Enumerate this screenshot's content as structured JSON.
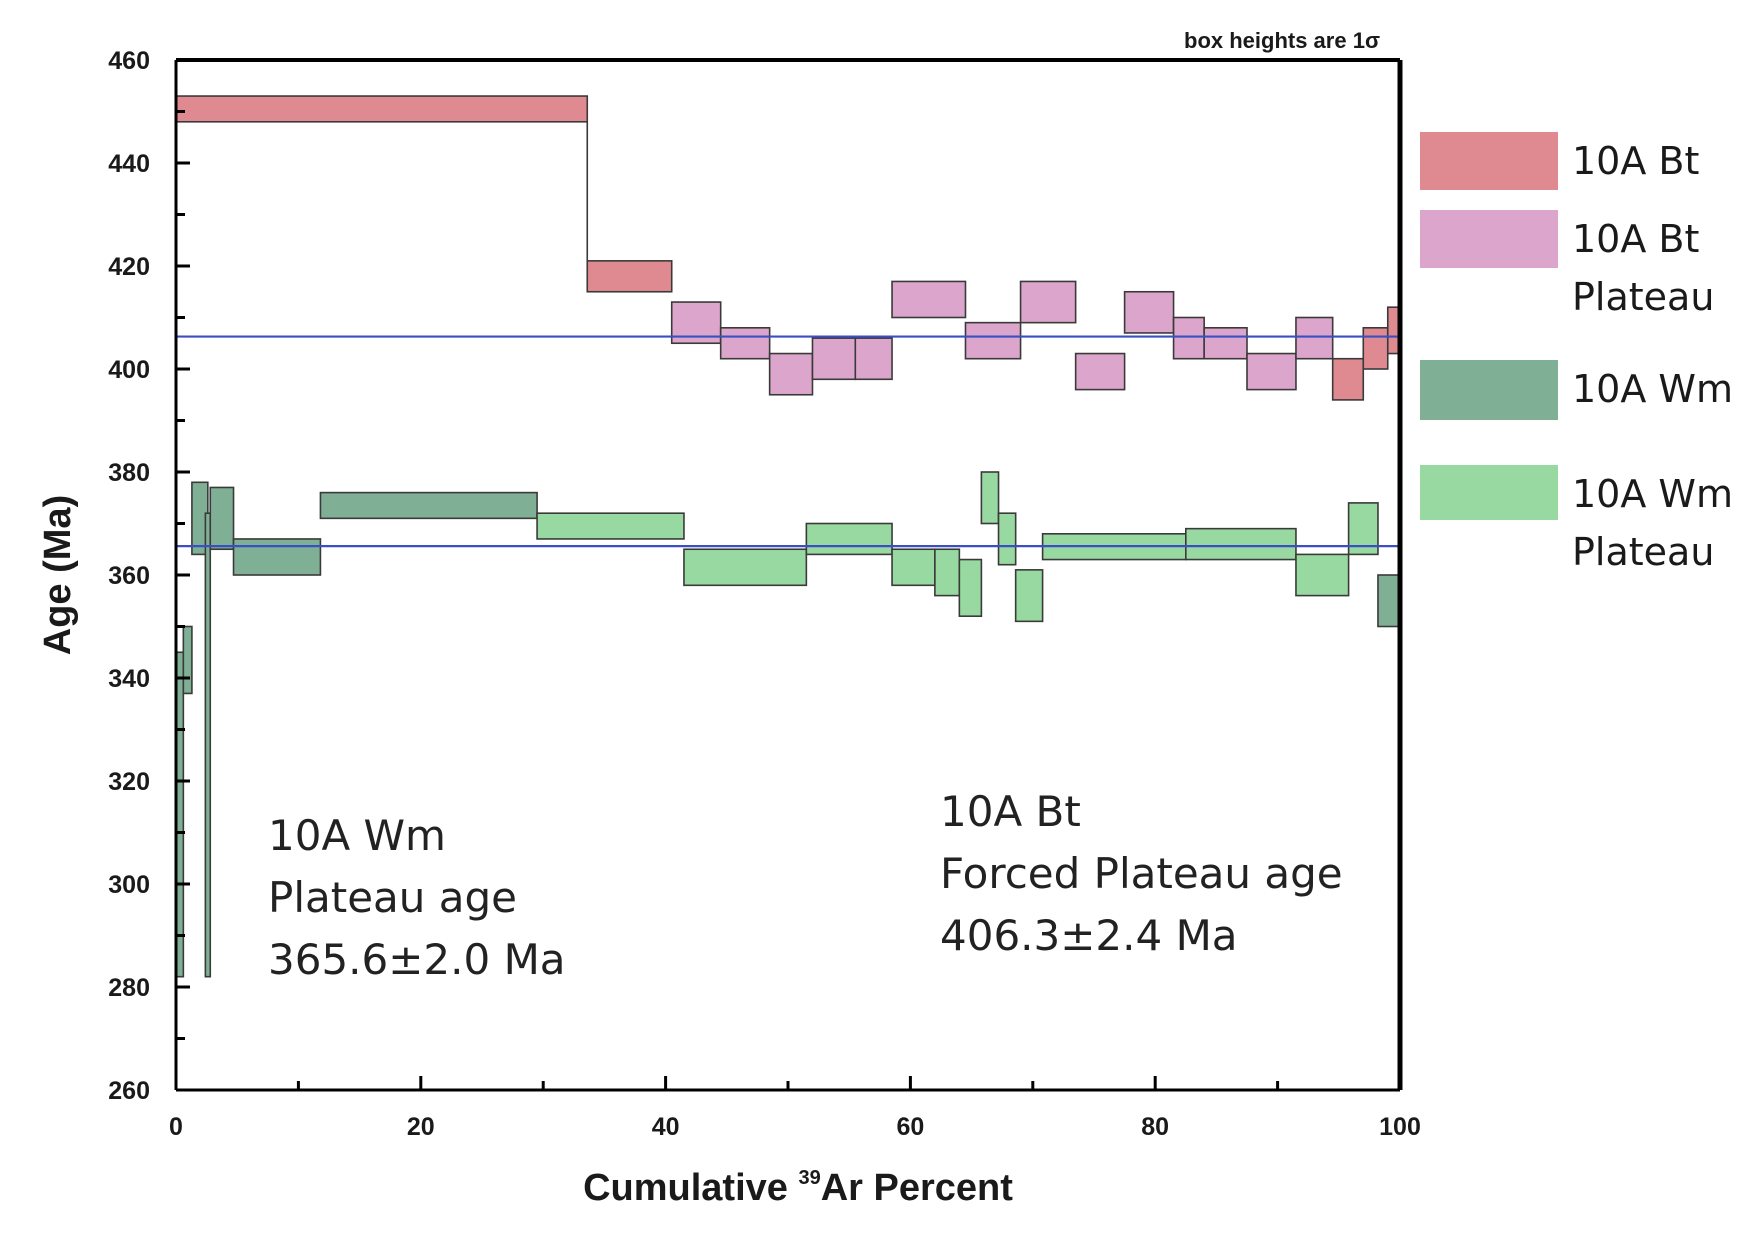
{
  "chart_data": {
    "type": "step-spectrum",
    "note": "box heights are 1σ",
    "xlabel": {
      "pre": "Cumulative ",
      "sup": "39",
      "post": "Ar Percent"
    },
    "ylabel": "Age (Ma)",
    "xlim": [
      0,
      100
    ],
    "ylim": [
      260,
      460
    ],
    "x_ticks": [
      0,
      20,
      40,
      60,
      80,
      100
    ],
    "y_ticks": [
      260,
      280,
      300,
      320,
      340,
      360,
      380,
      400,
      420,
      440,
      460
    ],
    "colors": {
      "bt": "#de8a90",
      "bt_plateau": "#dca6cc",
      "wm": "#7fb095",
      "wm_plateau": "#98d9a1",
      "plateau_line": "#3a4fc4",
      "box_edge": "#3a3a3a"
    },
    "plateau_lines": [
      {
        "name": "10A Bt plateau",
        "y": 406.3
      },
      {
        "name": "10A Wm plateau",
        "y": 365.6
      }
    ],
    "series": [
      {
        "name": "10A Bt",
        "color_key": "bt",
        "steps": [
          {
            "x0": 0,
            "x1": 33.6,
            "y_low": 448,
            "y_high": 453
          },
          {
            "x0": 33.6,
            "x1": 40.5,
            "y_low": 415,
            "y_high": 421
          },
          {
            "x0": 94.5,
            "x1": 97.0,
            "y_low": 394,
            "y_high": 402
          },
          {
            "x0": 97.0,
            "x1": 99.0,
            "y_low": 400,
            "y_high": 408
          },
          {
            "x0": 99.0,
            "x1": 100,
            "y_low": 403,
            "y_high": 412
          }
        ]
      },
      {
        "name": "10A Bt Plateau",
        "color_key": "bt_plateau",
        "steps": [
          {
            "x0": 40.5,
            "x1": 44.5,
            "y_low": 405,
            "y_high": 413
          },
          {
            "x0": 44.5,
            "x1": 48.5,
            "y_low": 402,
            "y_high": 408
          },
          {
            "x0": 48.5,
            "x1": 52.0,
            "y_low": 395,
            "y_high": 403
          },
          {
            "x0": 52.0,
            "x1": 55.5,
            "y_low": 398,
            "y_high": 406
          },
          {
            "x0": 55.5,
            "x1": 58.5,
            "y_low": 398,
            "y_high": 406
          },
          {
            "x0": 58.5,
            "x1": 64.5,
            "y_low": 410,
            "y_high": 417
          },
          {
            "x0": 64.5,
            "x1": 69.0,
            "y_low": 402,
            "y_high": 409
          },
          {
            "x0": 69.0,
            "x1": 73.5,
            "y_low": 409,
            "y_high": 417
          },
          {
            "x0": 73.5,
            "x1": 77.5,
            "y_low": 396,
            "y_high": 403
          },
          {
            "x0": 77.5,
            "x1": 81.5,
            "y_low": 407,
            "y_high": 415
          },
          {
            "x0": 81.5,
            "x1": 84.0,
            "y_low": 402,
            "y_high": 410
          },
          {
            "x0": 84.0,
            "x1": 87.5,
            "y_low": 402,
            "y_high": 408
          },
          {
            "x0": 87.5,
            "x1": 91.5,
            "y_low": 396,
            "y_high": 403
          },
          {
            "x0": 91.5,
            "x1": 94.5,
            "y_low": 402,
            "y_high": 410
          }
        ]
      },
      {
        "name": "10A Wm",
        "color_key": "wm",
        "steps": [
          {
            "x0": 0,
            "x1": 0.6,
            "y_low": 282,
            "y_high": 345
          },
          {
            "x0": 0.6,
            "x1": 1.3,
            "y_low": 337,
            "y_high": 350
          },
          {
            "x0": 1.3,
            "x1": 2.6,
            "y_low": 364,
            "y_high": 378
          },
          {
            "x0": 2.4,
            "x1": 2.8,
            "y_low": 282,
            "y_high": 372
          },
          {
            "x0": 2.8,
            "x1": 4.7,
            "y_low": 365,
            "y_high": 377
          },
          {
            "x0": 4.7,
            "x1": 11.8,
            "y_low": 360,
            "y_high": 367
          },
          {
            "x0": 11.8,
            "x1": 29.5,
            "y_low": 371,
            "y_high": 376
          },
          {
            "x0": 98.2,
            "x1": 100,
            "y_low": 350,
            "y_high": 360
          }
        ]
      },
      {
        "name": "10A Wm Plateau",
        "color_key": "wm_plateau",
        "steps": [
          {
            "x0": 29.5,
            "x1": 41.5,
            "y_low": 367,
            "y_high": 372
          },
          {
            "x0": 41.5,
            "x1": 51.5,
            "y_low": 358,
            "y_high": 365
          },
          {
            "x0": 51.5,
            "x1": 58.5,
            "y_low": 364,
            "y_high": 370
          },
          {
            "x0": 58.5,
            "x1": 62.0,
            "y_low": 358,
            "y_high": 365
          },
          {
            "x0": 62.0,
            "x1": 64.0,
            "y_low": 356,
            "y_high": 365
          },
          {
            "x0": 64.0,
            "x1": 65.8,
            "y_low": 352,
            "y_high": 363
          },
          {
            "x0": 65.8,
            "x1": 67.2,
            "y_low": 370,
            "y_high": 380
          },
          {
            "x0": 67.2,
            "x1": 68.6,
            "y_low": 362,
            "y_high": 372
          },
          {
            "x0": 68.6,
            "x1": 70.8,
            "y_low": 351,
            "y_high": 361
          },
          {
            "x0": 70.8,
            "x1": 82.5,
            "y_low": 363,
            "y_high": 368
          },
          {
            "x0": 82.5,
            "x1": 91.5,
            "y_low": 363,
            "y_high": 369
          },
          {
            "x0": 91.5,
            "x1": 95.8,
            "y_low": 356,
            "y_high": 364
          },
          {
            "x0": 95.8,
            "x1": 98.2,
            "y_low": 364,
            "y_high": 374
          }
        ]
      }
    ],
    "annotations": [
      {
        "name": "wm-plateau-annotation",
        "lines": [
          "10A Wm",
          "Plateau age",
          "365.6±2.0 Ma"
        ]
      },
      {
        "name": "bt-plateau-annotation",
        "lines": [
          "10A Bt",
          "Forced Plateau age",
          "406.3±2.4 Ma"
        ]
      }
    ],
    "legend": {
      "position": "right",
      "entries": [
        {
          "color_key": "bt",
          "label_lines": [
            "10A Bt"
          ]
        },
        {
          "color_key": "bt_plateau",
          "label_lines": [
            "10A Bt",
            "Plateau"
          ]
        },
        {
          "color_key": "wm",
          "label_lines": [
            "10A Wm"
          ]
        },
        {
          "color_key": "wm_plateau",
          "label_lines": [
            "10A Wm",
            "Plateau"
          ]
        }
      ]
    }
  }
}
